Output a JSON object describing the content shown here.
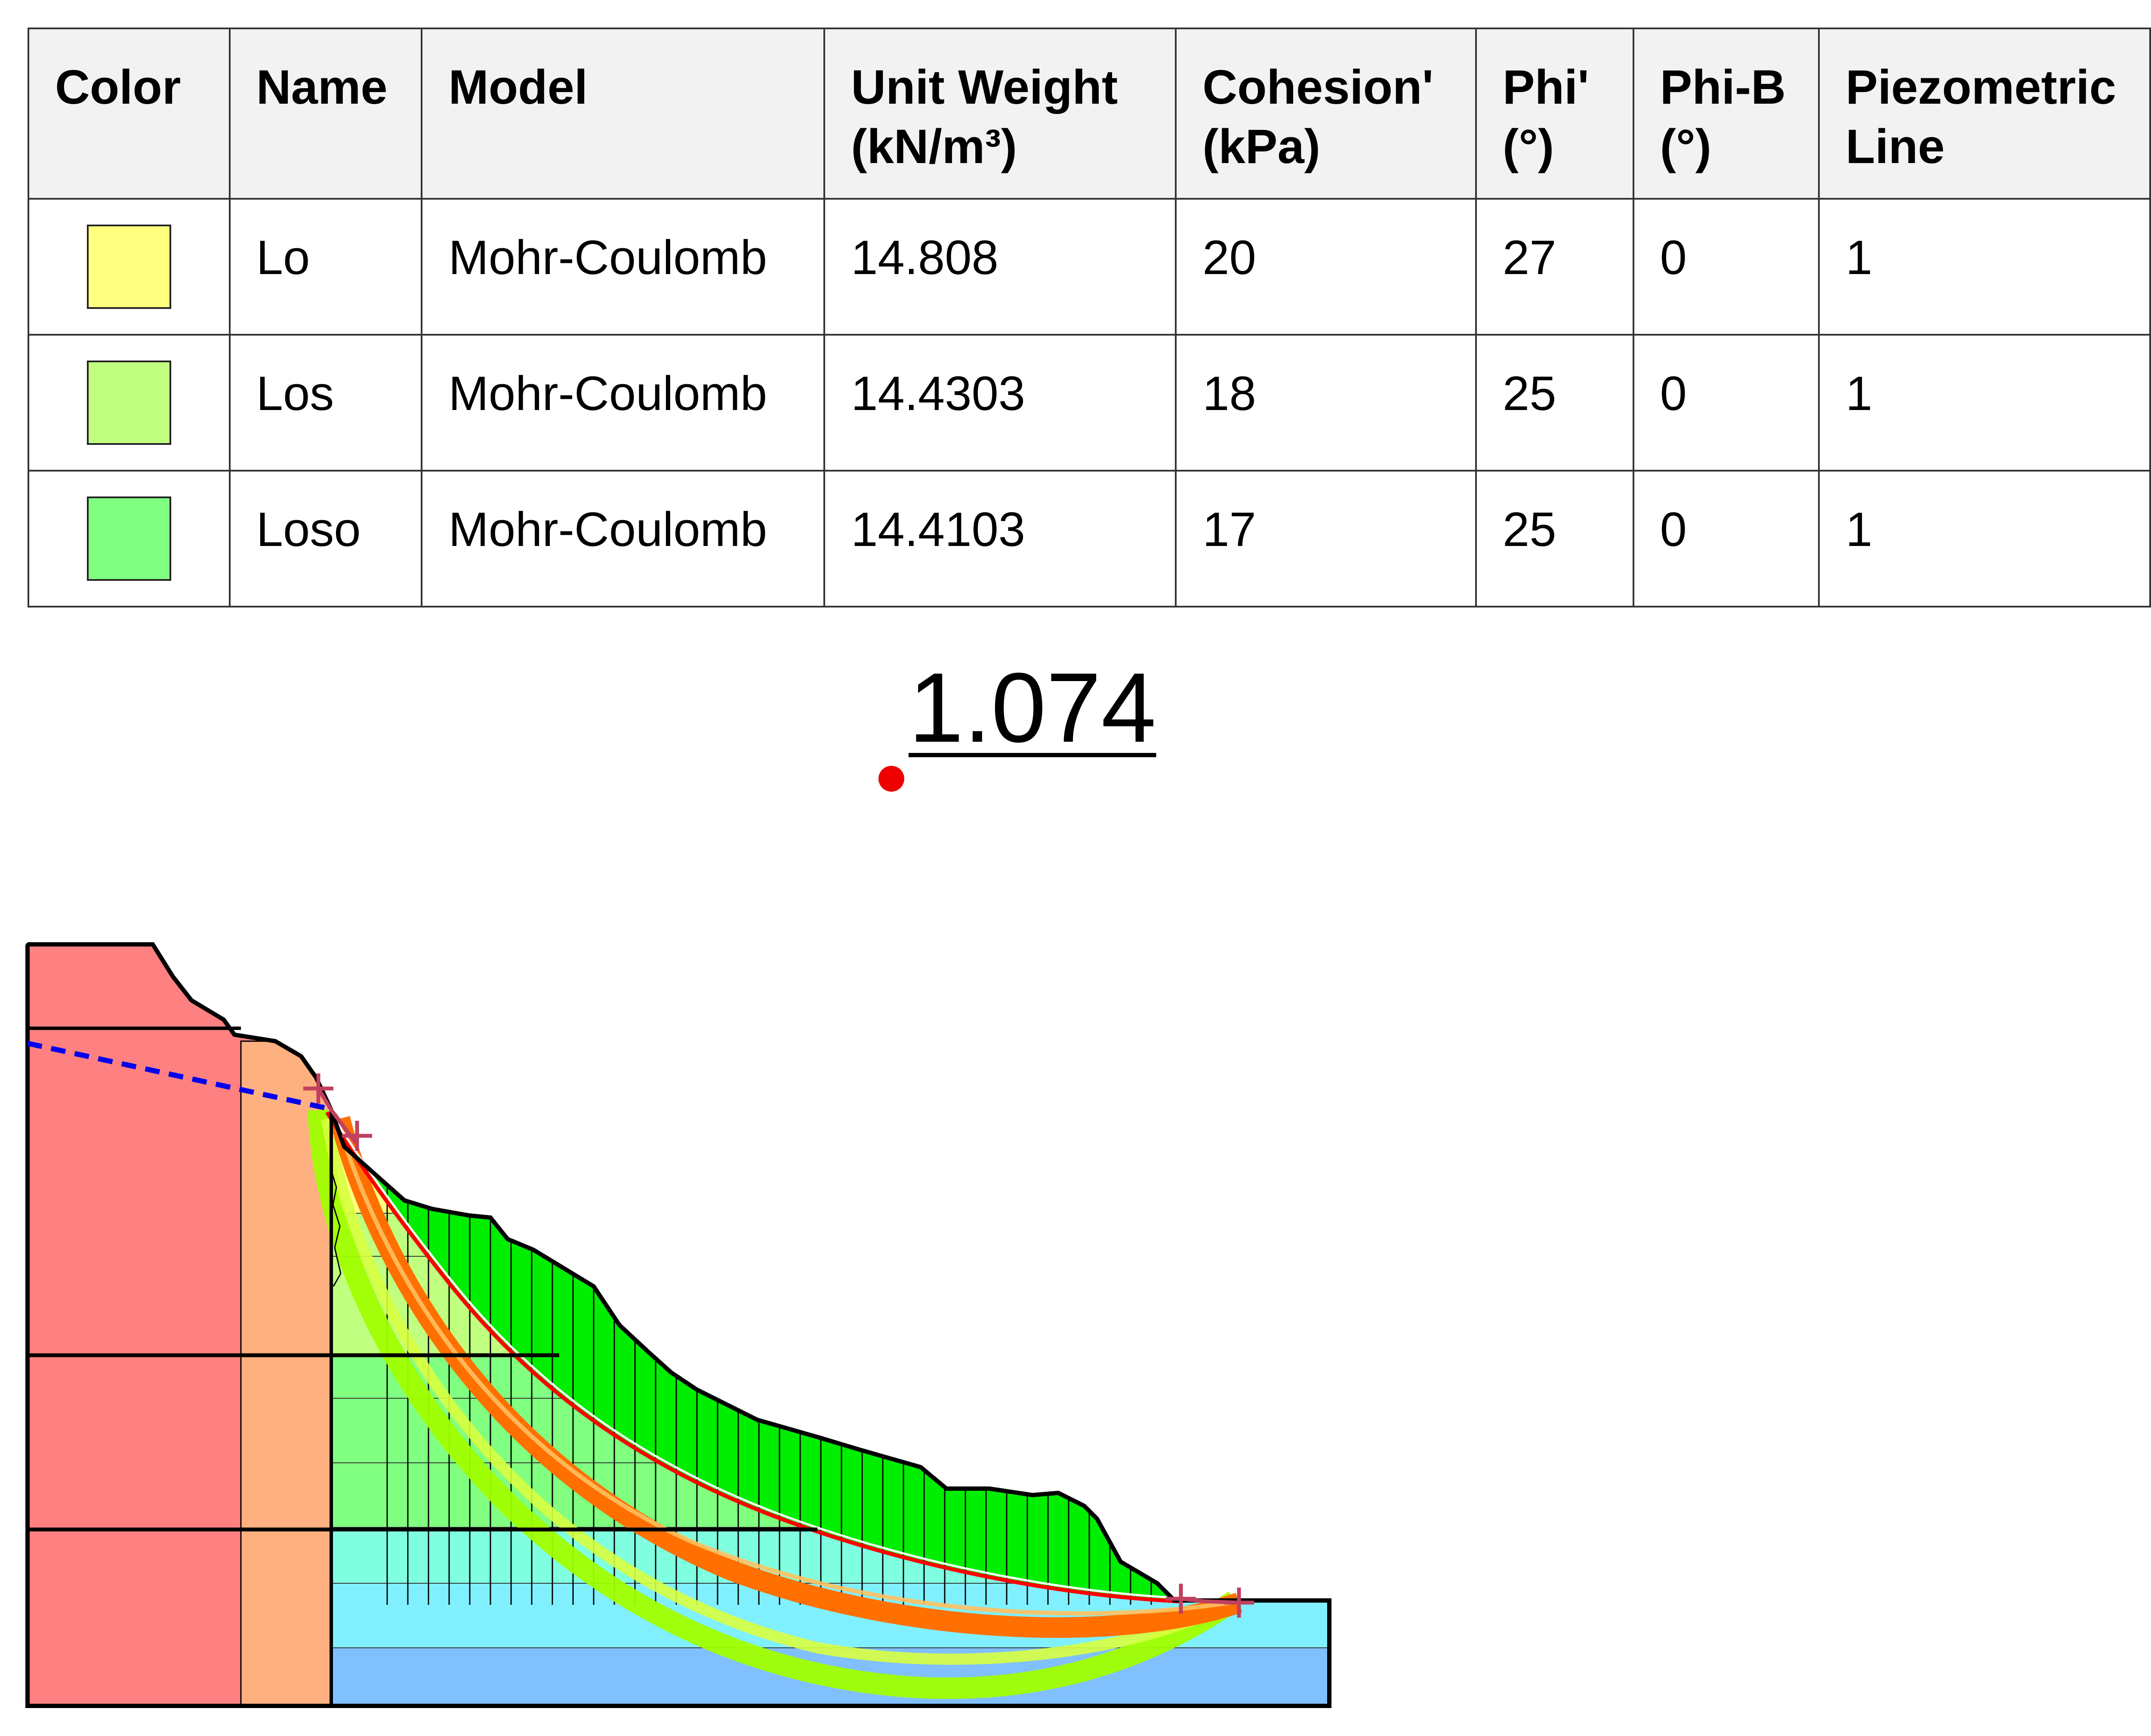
{
  "materials_table": {
    "headers": {
      "color": "Color",
      "name": "Name",
      "model": "Model",
      "unit_weight_1": "Unit Weight",
      "unit_weight_2": "(kN/m³)",
      "cohesion_1": "Cohesion'",
      "cohesion_2": "(kPa)",
      "phi_1": "Phi'",
      "phi_2": "(°)",
      "phib_1": "Phi-B",
      "phib_2": "(°)",
      "piezo_1": "Piezometric",
      "piezo_2": "Line"
    },
    "rows": [
      {
        "color": "#ffff80",
        "name": "Lo",
        "model": "Mohr-Coulomb",
        "unit_weight": "14.808",
        "cohesion": "20",
        "phi": "27",
        "phi_b": "0",
        "piezometric_line": "1"
      },
      {
        "color": "#c0ff80",
        "name": "Los",
        "model": "Mohr-Coulomb",
        "unit_weight": "14.4303",
        "cohesion": "18",
        "phi": "25",
        "phi_b": "0",
        "piezometric_line": "1"
      },
      {
        "color": "#80ff80",
        "name": "Loso",
        "model": "Mohr-Coulomb",
        "unit_weight": "14.4103",
        "cohesion": "17",
        "phi": "25",
        "phi_b": "0",
        "piezometric_line": "1"
      }
    ]
  },
  "factor_of_safety": "1.074",
  "colors": {
    "left_block": "#ff8080",
    "second_block": "#ffb080",
    "slices": "#00ee00",
    "critical_slip": "#ff0000",
    "slip_band_orange": "#ff7000",
    "slip_band_green": "#a0ff00",
    "piezometric_line": "#0000ee",
    "center_point": "#ee0000",
    "entry_exit_marks": "#c04060",
    "layer_cyan": "#80ffe0",
    "layer_lightblue": "#80f0ff",
    "layer_blue": "#80c0ff"
  }
}
